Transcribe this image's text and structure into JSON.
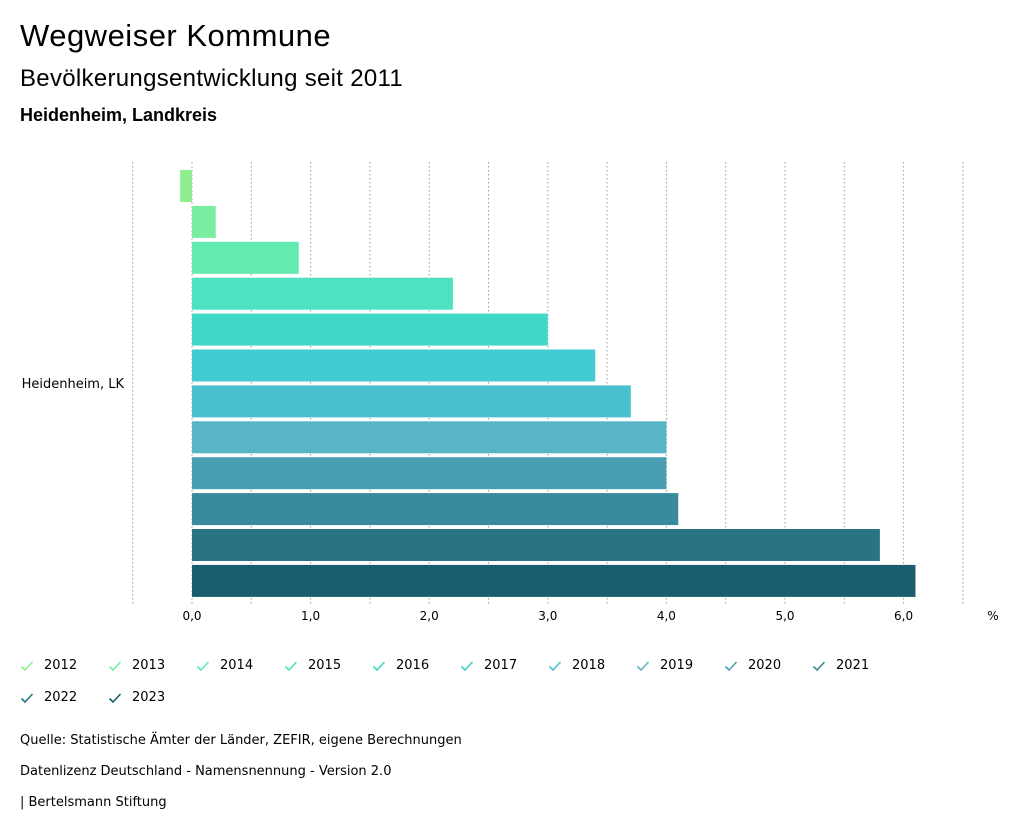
{
  "header": {
    "title": "Wegweiser Kommune",
    "subtitle": "Bevölkerungsentwicklung seit 2011",
    "region": "Heidenheim, Landkreis"
  },
  "chart_data": {
    "type": "bar",
    "orientation": "horizontal",
    "categories": [
      "Heidenheim, LK"
    ],
    "series": [
      {
        "name": "2012",
        "values": [
          -0.1
        ],
        "color": "#90ee90"
      },
      {
        "name": "2013",
        "values": [
          0.2
        ],
        "color": "#7aeea0"
      },
      {
        "name": "2014",
        "values": [
          0.9
        ],
        "color": "#62eab0"
      },
      {
        "name": "2015",
        "values": [
          2.2
        ],
        "color": "#4ee2c0"
      },
      {
        "name": "2016",
        "values": [
          3.0
        ],
        "color": "#40d8c8"
      },
      {
        "name": "2017",
        "values": [
          3.4
        ],
        "color": "#40ccd0"
      },
      {
        "name": "2018",
        "values": [
          3.7
        ],
        "color": "#48c0d0"
      },
      {
        "name": "2019",
        "values": [
          4.0
        ],
        "color": "#5ab4c8"
      },
      {
        "name": "2020",
        "values": [
          4.0
        ],
        "color": "#4a9eb4"
      },
      {
        "name": "2021",
        "values": [
          4.1
        ],
        "color": "#3a8a9e"
      },
      {
        "name": "2022",
        "values": [
          5.8
        ],
        "color": "#287482"
      },
      {
        "name": "2023",
        "values": [
          6.1
        ],
        "color": "#185e6e"
      }
    ],
    "x_ticks": [
      "0,0",
      "1,0",
      "2,0",
      "3,0",
      "4,0",
      "5,0",
      "6,0"
    ],
    "x_tick_values": [
      0,
      1,
      2,
      3,
      4,
      5,
      6
    ],
    "x_unit": "%",
    "xlim": [
      -0.5,
      6.5
    ],
    "grid": true
  },
  "footer": {
    "source": "Quelle: Statistische Ämter der Länder, ZEFIR, eigene Berechnungen",
    "license": "Datenlizenz Deutschland - Namensnennung - Version 2.0",
    "publisher": "| Bertelsmann Stiftung"
  }
}
